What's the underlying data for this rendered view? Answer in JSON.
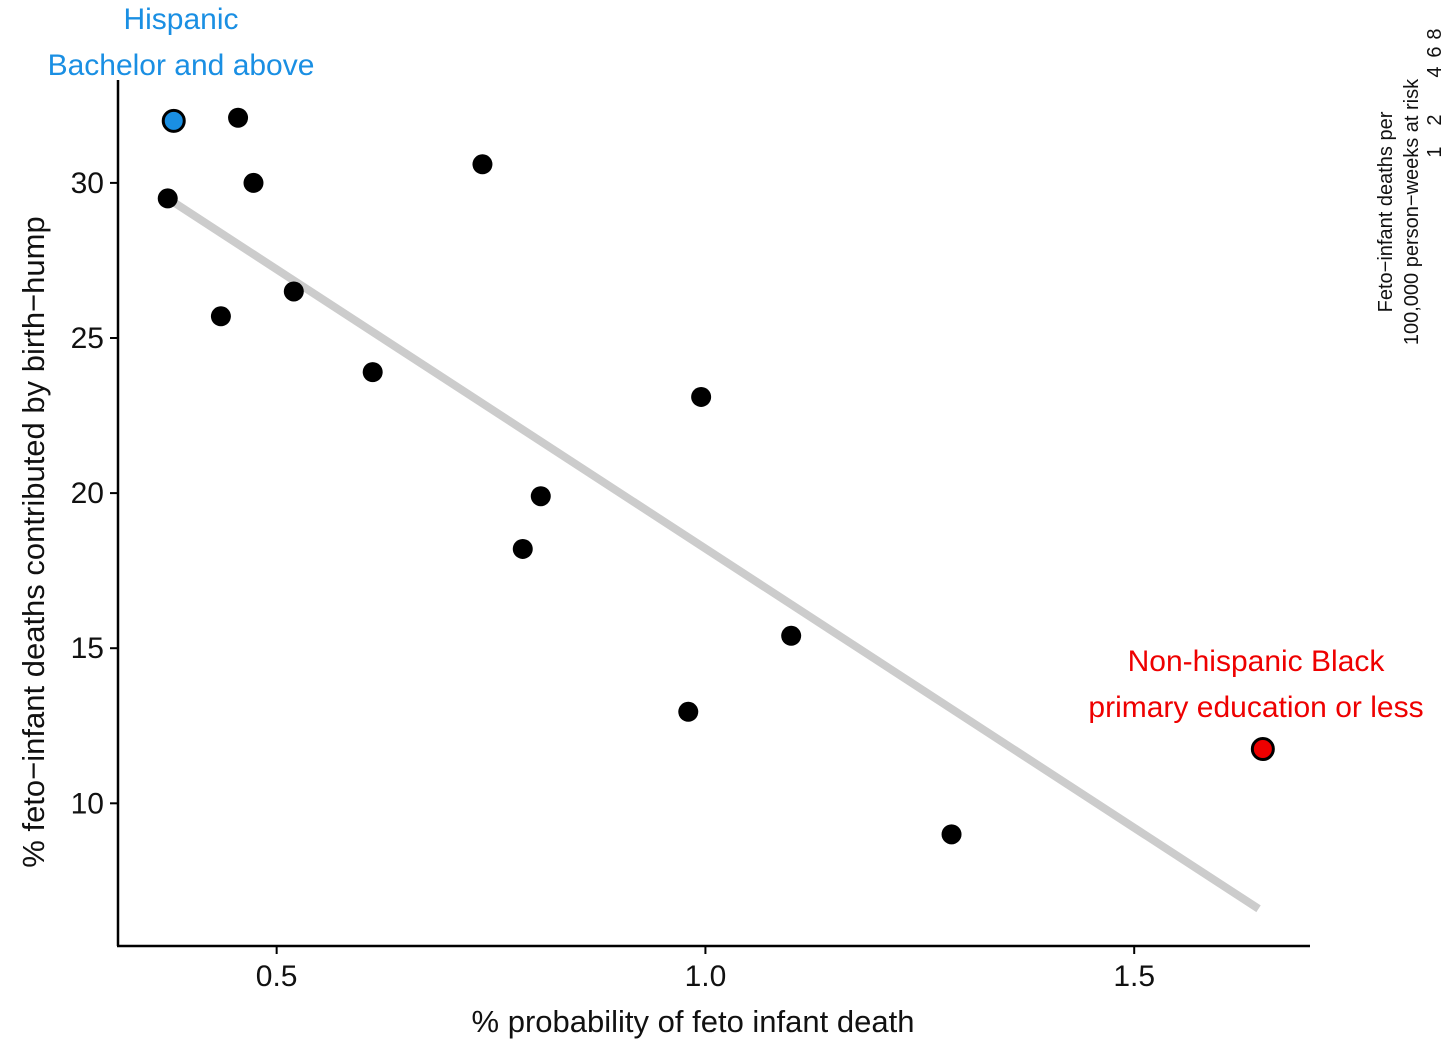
{
  "chart_data": {
    "type": "scatter",
    "title": "",
    "xlabel": "% probability of feto infant death",
    "ylabel": "% feto−infant deaths contributed by birth−hump",
    "xlim": [
      0.315,
      1.705
    ],
    "ylim": [
      5.4,
      34.8
    ],
    "x_ticks": [
      {
        "value": 0.5,
        "label": "0.5"
      },
      {
        "value": 1.0,
        "label": "1.0"
      },
      {
        "value": 1.5,
        "label": "1.5"
      }
    ],
    "y_ticks": [
      {
        "value": 10,
        "label": "10"
      },
      {
        "value": 15,
        "label": "15"
      },
      {
        "value": 20,
        "label": "20"
      },
      {
        "value": 25,
        "label": "25"
      },
      {
        "value": 30,
        "label": "30"
      }
    ],
    "points": [
      {
        "x": 0.38,
        "y": 32.0,
        "color": "#1a8fe3"
      },
      {
        "x": 0.455,
        "y": 32.1,
        "color": "#000000"
      },
      {
        "x": 0.473,
        "y": 30.0,
        "color": "#000000"
      },
      {
        "x": 0.373,
        "y": 29.5,
        "color": "#000000"
      },
      {
        "x": 0.74,
        "y": 30.6,
        "color": "#000000"
      },
      {
        "x": 0.52,
        "y": 26.5,
        "color": "#000000"
      },
      {
        "x": 0.435,
        "y": 25.7,
        "color": "#000000"
      },
      {
        "x": 0.612,
        "y": 23.9,
        "color": "#000000"
      },
      {
        "x": 0.995,
        "y": 23.1,
        "color": "#000000"
      },
      {
        "x": 0.808,
        "y": 19.9,
        "color": "#000000"
      },
      {
        "x": 0.787,
        "y": 18.2,
        "color": "#000000"
      },
      {
        "x": 1.1,
        "y": 15.4,
        "color": "#000000"
      },
      {
        "x": 0.98,
        "y": 12.95,
        "color": "#000000"
      },
      {
        "x": 1.287,
        "y": 9.0,
        "color": "#000000"
      },
      {
        "x": 1.65,
        "y": 11.75,
        "color": "#ee0000"
      }
    ],
    "trend_line": {
      "x": [
        0.373,
        1.645
      ],
      "y": [
        29.5,
        6.6
      ],
      "color": "#cccccc"
    },
    "annotations": [
      {
        "lines": [
          "Hispanic",
          "Bachelor and above"
        ],
        "color": "#1a8fe3"
      },
      {
        "lines": [
          "Non-hispanic Black",
          "primary education or less"
        ],
        "color": "#ee0000"
      }
    ],
    "legend": {
      "title_lines": [
        "Feto−infant deaths per",
        "100,000 person−weeks at risk"
      ],
      "values": [
        "8",
        "6",
        "4",
        "2",
        "1"
      ]
    },
    "grid": false
  }
}
